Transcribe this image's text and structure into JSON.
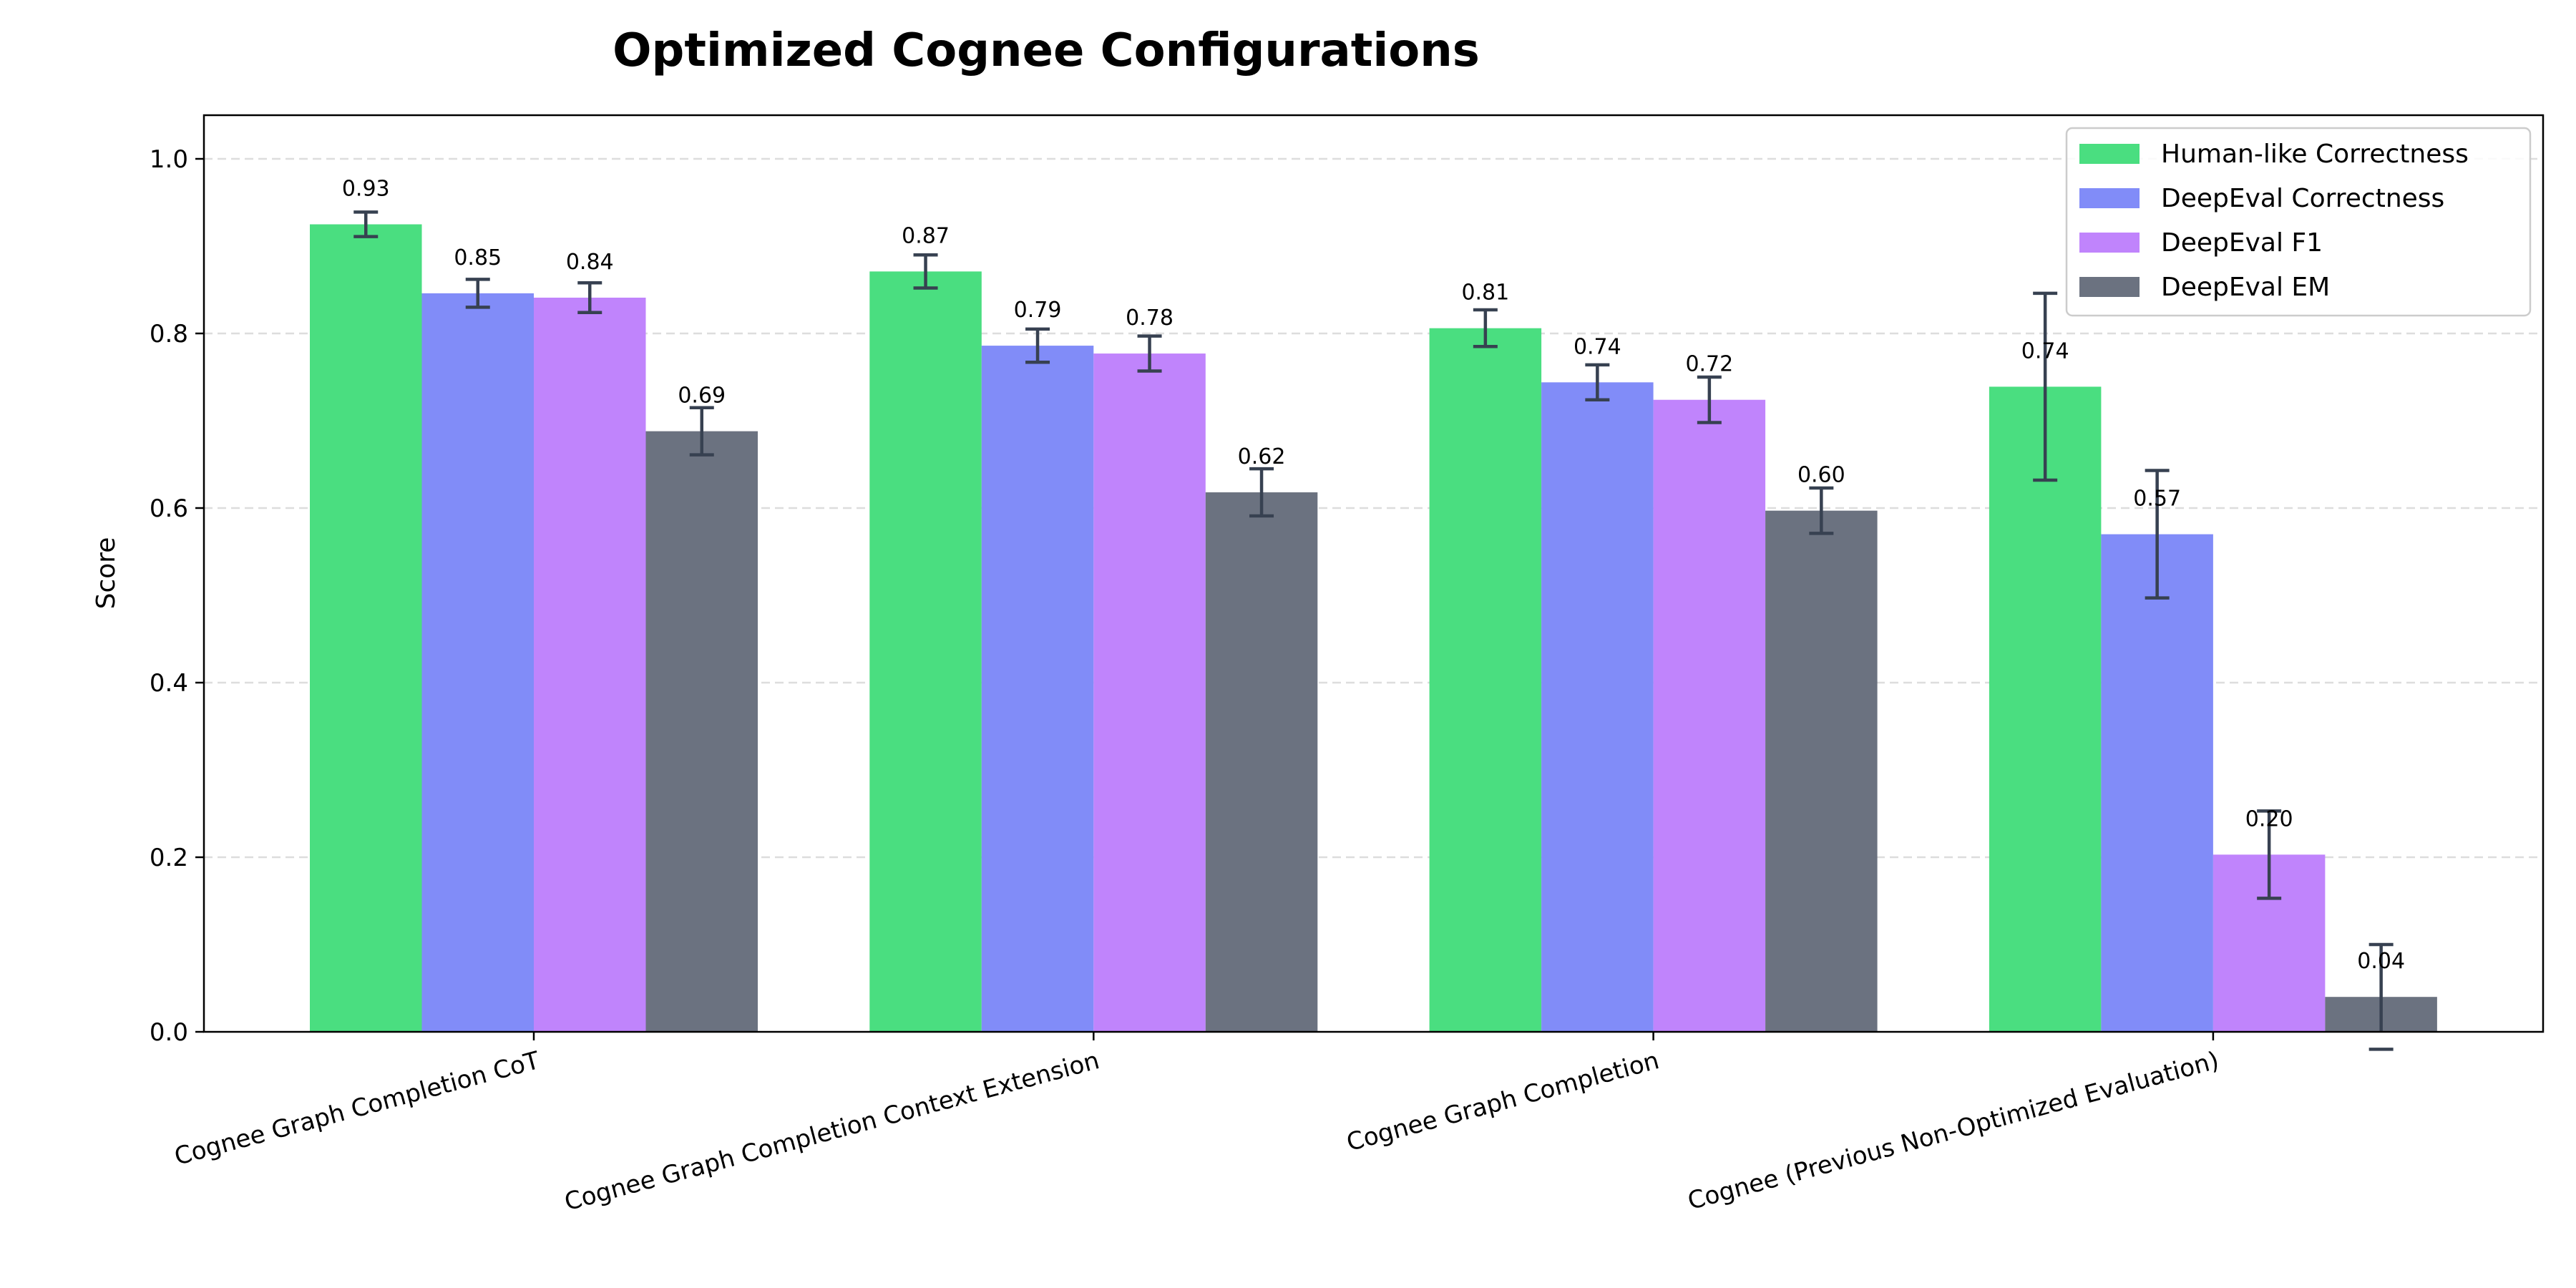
{
  "chart_data": {
    "type": "bar",
    "title": "Optimized Cognee Configurations",
    "xlabel": "",
    "ylabel": "Score",
    "ylim": [
      0,
      1.05
    ],
    "yticks": [
      "0.0",
      "0.2",
      "0.4",
      "0.6",
      "0.8",
      "1.0"
    ],
    "grid": "y dashed",
    "legend_position": "top-right",
    "categories": [
      "Cognee Graph Completion CoT",
      "Cognee Graph Completion Context Extension",
      "Cognee Graph Completion",
      "Cognee (Previous Non-Optimized Evaluation)"
    ],
    "series": [
      {
        "name": "Human-like Correctness",
        "color": "#4ade80",
        "values": [
          0.925,
          0.871,
          0.806,
          0.739
        ],
        "errors": [
          0.014,
          0.019,
          0.021,
          0.107
        ],
        "labels": [
          "0.93",
          "0.87",
          "0.81",
          "0.74"
        ]
      },
      {
        "name": "DeepEval Correctness",
        "color": "#818cf8",
        "values": [
          0.846,
          0.786,
          0.744,
          0.57
        ],
        "errors": [
          0.016,
          0.019,
          0.02,
          0.073
        ],
        "labels": [
          "0.85",
          "0.79",
          "0.74",
          "0.57"
        ]
      },
      {
        "name": "DeepEval F1",
        "color": "#c084fc",
        "values": [
          0.841,
          0.777,
          0.724,
          0.203
        ],
        "errors": [
          0.017,
          0.02,
          0.026,
          0.05
        ],
        "labels": [
          "0.84",
          "0.78",
          "0.72",
          "0.20"
        ]
      },
      {
        "name": "DeepEval EM",
        "color": "#6b7280",
        "values": [
          0.688,
          0.618,
          0.597,
          0.04
        ],
        "errors": [
          0.027,
          0.027,
          0.026,
          0.06
        ],
        "labels": [
          "0.69",
          "0.62",
          "0.60",
          "0.04"
        ]
      }
    ],
    "error_bar_color": "#374151"
  }
}
